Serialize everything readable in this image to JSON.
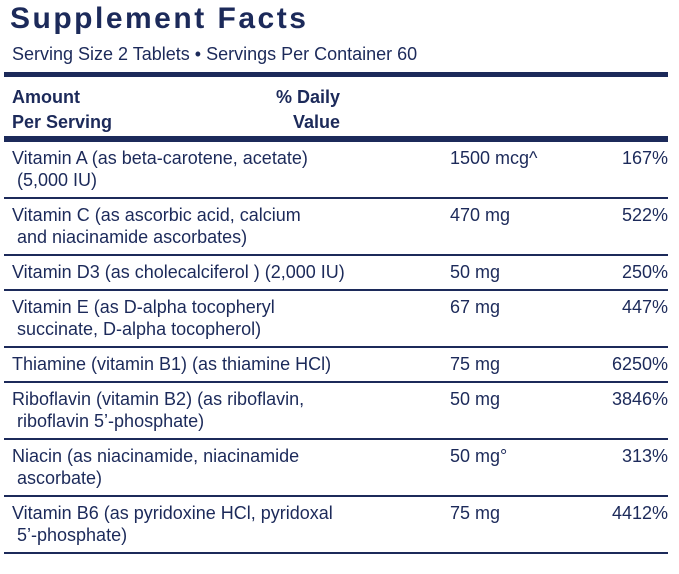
{
  "header": {
    "title": "Supplement Facts",
    "serving": "Serving Size 2 Tablets • Servings Per Container 60"
  },
  "columns": {
    "amount": [
      "Amount",
      "Per Serving"
    ],
    "daily_value": [
      "% Daily",
      "Value"
    ]
  },
  "rows": [
    {
      "name": [
        "Vitamin A (as beta-carotene, acetate)",
        " (5,000 IU)"
      ],
      "amount": "1500 mcg^",
      "daily_value": "167%"
    },
    {
      "name": [
        "Vitamin C (as ascorbic acid, calcium",
        " and niacinamide ascorbates)"
      ],
      "amount": "470 mg",
      "daily_value": "522%"
    },
    {
      "name": [
        "Vitamin D3 (as cholecalciferol ) (2,000 IU)"
      ],
      "amount": "50 mg",
      "daily_value": "250%"
    },
    {
      "name": [
        "Vitamin E (as D-alpha tocopheryl",
        " succinate, D-alpha tocopherol)"
      ],
      "amount": "67 mg",
      "daily_value": "447%"
    },
    {
      "name": [
        "Thiamine (vitamin B1) (as thiamine HCl)"
      ],
      "amount": "75 mg",
      "daily_value": "6250%"
    },
    {
      "name": [
        "Riboflavin (vitamin B2) (as riboflavin,",
        " riboflavin 5’-phosphate)"
      ],
      "amount": "50 mg",
      "daily_value": "3846%"
    },
    {
      "name": [
        "Niacin (as niacinamide, niacinamide",
        " ascorbate)"
      ],
      "amount": "50 mg°",
      "daily_value": "313%"
    },
    {
      "name": [
        "Vitamin B6 (as pyridoxine HCl, pyridoxal",
        " 5’-phosphate)"
      ],
      "amount": "75 mg",
      "daily_value": "4412%"
    }
  ]
}
